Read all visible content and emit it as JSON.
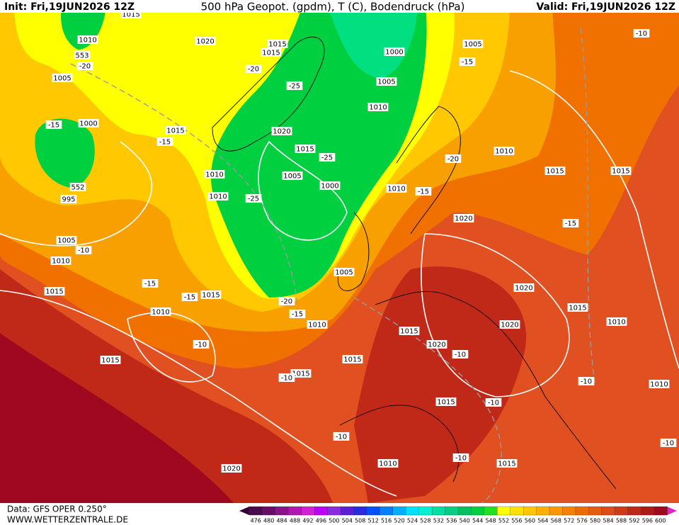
{
  "header": {
    "init": "Init: Fri,19JUN2026 12Z",
    "title": "500 hPa Geopot. (gpdm), T (C), Bodendruck (hPa)",
    "valid": "Valid: Fri,19JUN2026 12Z"
  },
  "footer": {
    "data": "Data: GFS OPER 0.250°",
    "site": "WWW.WETTERZENTRALE.DE"
  },
  "colorbar": {
    "values": [
      476,
      480,
      484,
      488,
      492,
      496,
      500,
      504,
      508,
      512,
      516,
      520,
      524,
      528,
      532,
      536,
      540,
      544,
      548,
      552,
      556,
      560,
      564,
      568,
      572,
      576,
      580,
      584,
      588,
      592,
      596,
      600
    ],
    "colors": [
      "#4b0a4b",
      "#6a0d6a",
      "#8a128a",
      "#b018b0",
      "#d61ed6",
      "#c000ff",
      "#8a2be2",
      "#5a1fd8",
      "#2a2ae0",
      "#0050ff",
      "#0080ff",
      "#00b0ff",
      "#00e0ff",
      "#00f0d0",
      "#00e0a0",
      "#00d080",
      "#00c060",
      "#00d040",
      "#20e020",
      "#ffff00",
      "#ffe000",
      "#ffc800",
      "#ffb000",
      "#ff9800",
      "#f88000",
      "#f06a00",
      "#e85a10",
      "#e04a18",
      "#d03818",
      "#c02818",
      "#b01818",
      "#a00820"
    ]
  },
  "map": {
    "labels": [
      "1015",
      "1010",
      "553",
      "-20",
      "1005",
      "1020",
      "1015",
      "1015",
      "1000",
      "1005",
      "-15",
      "-10",
      "-20",
      "-25",
      "1005",
      "1010",
      "-15",
      "1000",
      "1015",
      "-15",
      "1020",
      "1015",
      "-25",
      "-20",
      "1010",
      "1015",
      "1015",
      "1010",
      "1005",
      "1000",
      "552",
      "995",
      "1010",
      "-25",
      "1010",
      "-15",
      "1020",
      "-15",
      "1005",
      "-10",
      "1010",
      "1005",
      "-15",
      "1015",
      "-15",
      "1020",
      "-20",
      "1015",
      "1010",
      "-15",
      "1010",
      "1020",
      "1010",
      "1015",
      "-10",
      "1020",
      "-10",
      "1015",
      "1015",
      "1015",
      "-10",
      "-10",
      "1010",
      "1015",
      "-10",
      "-10",
      "-10",
      "-10",
      "1010",
      "1015",
      "1020",
      "1015"
    ]
  }
}
